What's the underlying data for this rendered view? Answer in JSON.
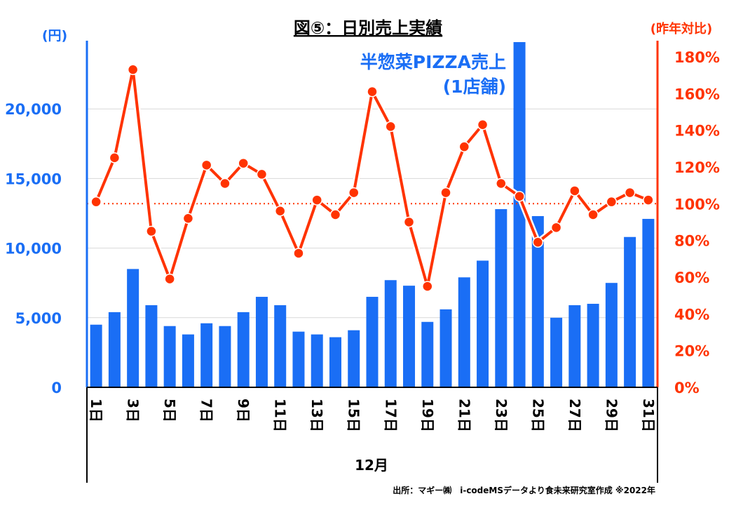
{
  "chart_data": {
    "type": "bar+line",
    "title": "図⑤：日別売上実績",
    "left_axis_label": "(円)",
    "right_axis_label": "(昨年対比)",
    "annotation_line1": "半惣菜PIZZA売上",
    "annotation_line2": "(1店舗)",
    "xlabel": "12月",
    "footer": "出所：マギー㈱　i-codeMSデータより食未来研究室作成 ※2022年",
    "categories": [
      "1日",
      "2日",
      "3日",
      "4日",
      "5日",
      "6日",
      "7日",
      "8日",
      "9日",
      "10日",
      "11日",
      "12日",
      "13日",
      "14日",
      "15日",
      "16日",
      "17日",
      "18日",
      "19日",
      "20日",
      "21日",
      "22日",
      "23日",
      "24日",
      "25日",
      "26日",
      "27日",
      "28日",
      "29日",
      "30日",
      "31日"
    ],
    "x_tick_labels": [
      "1日",
      "3日",
      "5日",
      "7日",
      "9日",
      "11日",
      "13日",
      "15日",
      "17日",
      "19日",
      "21日",
      "23日",
      "25日",
      "27日",
      "29日",
      "31日"
    ],
    "y_left_ticks": [
      "0",
      "5,000",
      "10,000",
      "15,000",
      "20,000"
    ],
    "y_left_tick_values": [
      0,
      5000,
      10000,
      15000,
      20000
    ],
    "y_left_range": [
      0,
      24800
    ],
    "y_right_ticks": [
      "0%",
      "20%",
      "40%",
      "60%",
      "80%",
      "100%",
      "120%",
      "140%",
      "160%",
      "180%"
    ],
    "y_right_tick_values": [
      0,
      20,
      40,
      60,
      80,
      100,
      120,
      140,
      160,
      180
    ],
    "y_right_range": [
      0,
      188
    ],
    "reference_line_pct": 100,
    "series": [
      {
        "name": "売上(円)",
        "axis": "left",
        "type": "bar",
        "color": "#1a6ef5",
        "values": [
          4500,
          5400,
          8500,
          5900,
          4400,
          3800,
          4600,
          4400,
          5400,
          6500,
          5900,
          4000,
          3800,
          3600,
          4100,
          6500,
          7700,
          7300,
          4700,
          5600,
          7900,
          9100,
          12800,
          25000,
          12300,
          5000,
          5900,
          6000,
          7500,
          10800,
          12100
        ]
      },
      {
        "name": "昨年対比(%)",
        "axis": "right",
        "type": "line",
        "color": "#ff3300",
        "values": [
          101,
          125,
          173,
          85,
          59,
          92,
          121,
          111,
          122,
          116,
          96,
          73,
          102,
          94,
          106,
          161,
          142,
          90,
          55,
          106,
          131,
          143,
          111,
          104,
          79,
          87,
          107,
          94,
          101,
          106,
          102
        ]
      }
    ],
    "grid": true
  }
}
